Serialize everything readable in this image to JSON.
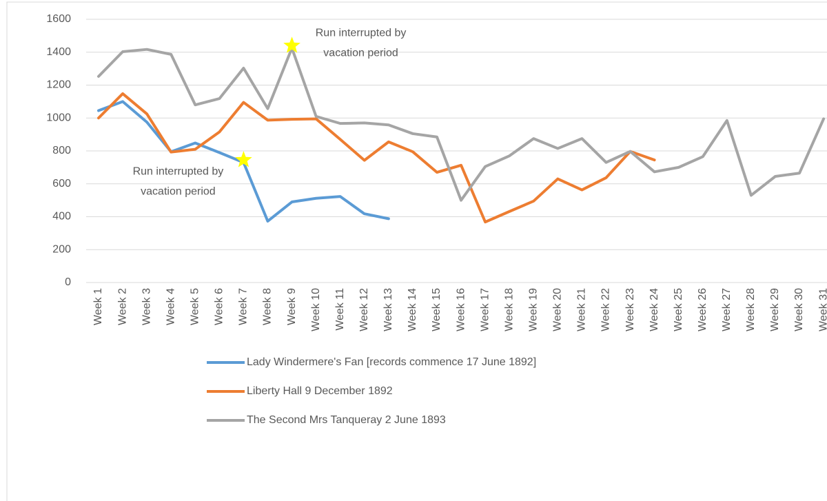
{
  "chart_data": {
    "type": "line",
    "categories": [
      "Week 1",
      "Week 2",
      "Week 3",
      "Week 4",
      "Week 5",
      "Week 6",
      "Week 7",
      "Week 8",
      "Week 9",
      "Week 10",
      "Week 11",
      "Week 12",
      "Week 13",
      "Week 14",
      "Week 15",
      "Week 16",
      "Week 17",
      "Week 18",
      "Week 19",
      "Week 20",
      "Week 21",
      "Week 22",
      "Week 23",
      "Week 24",
      "Week 25",
      "Week 26",
      "Week 27",
      "Week 28",
      "Week 29",
      "Week 30",
      "Week 31"
    ],
    "series": [
      {
        "name": "Lady Windermere's Fan [records commence 17 June 1892]",
        "color": "#5b9bd5",
        "values": [
          1045,
          1100,
          975,
          795,
          848,
          790,
          730,
          373,
          490,
          512,
          523,
          418,
          388,
          null,
          null,
          null,
          null,
          null,
          null,
          null,
          null,
          null,
          null,
          null,
          null,
          null,
          null,
          null,
          null,
          null,
          null
        ]
      },
      {
        "name": "Liberty Hall 9 December 1892",
        "color": "#ed7d31",
        "values": [
          1000,
          1148,
          1025,
          793,
          810,
          915,
          1095,
          987,
          992,
          995,
          870,
          743,
          855,
          795,
          670,
          713,
          368,
          432,
          495,
          630,
          563,
          637,
          797,
          745,
          null,
          null,
          null,
          null,
          null,
          null,
          null
        ]
      },
      {
        "name": "The Second Mrs Tanqueray 2 June 1893",
        "color": "#a5a5a5",
        "values": [
          1253,
          1403,
          1417,
          1387,
          1080,
          1118,
          1303,
          1057,
          1425,
          1010,
          967,
          970,
          958,
          905,
          885,
          500,
          705,
          770,
          875,
          815,
          875,
          730,
          797,
          673,
          700,
          765,
          985,
          530,
          645,
          665,
          995
        ]
      }
    ],
    "annotations": [
      {
        "lines": [
          "Run interrupted by",
          "vacation period"
        ],
        "x": "Week 7",
        "y": 745,
        "marker_color": "#ffff00"
      },
      {
        "lines": [
          "Run interrupted by",
          "vacation period"
        ],
        "x": "Week 9",
        "y": 1440,
        "marker_color": "#ffff00"
      }
    ],
    "ylim": [
      0,
      1600
    ],
    "yticks": [
      0,
      200,
      400,
      600,
      800,
      1000,
      1200,
      1400,
      1600
    ],
    "grid": true,
    "legend": "bottom"
  }
}
